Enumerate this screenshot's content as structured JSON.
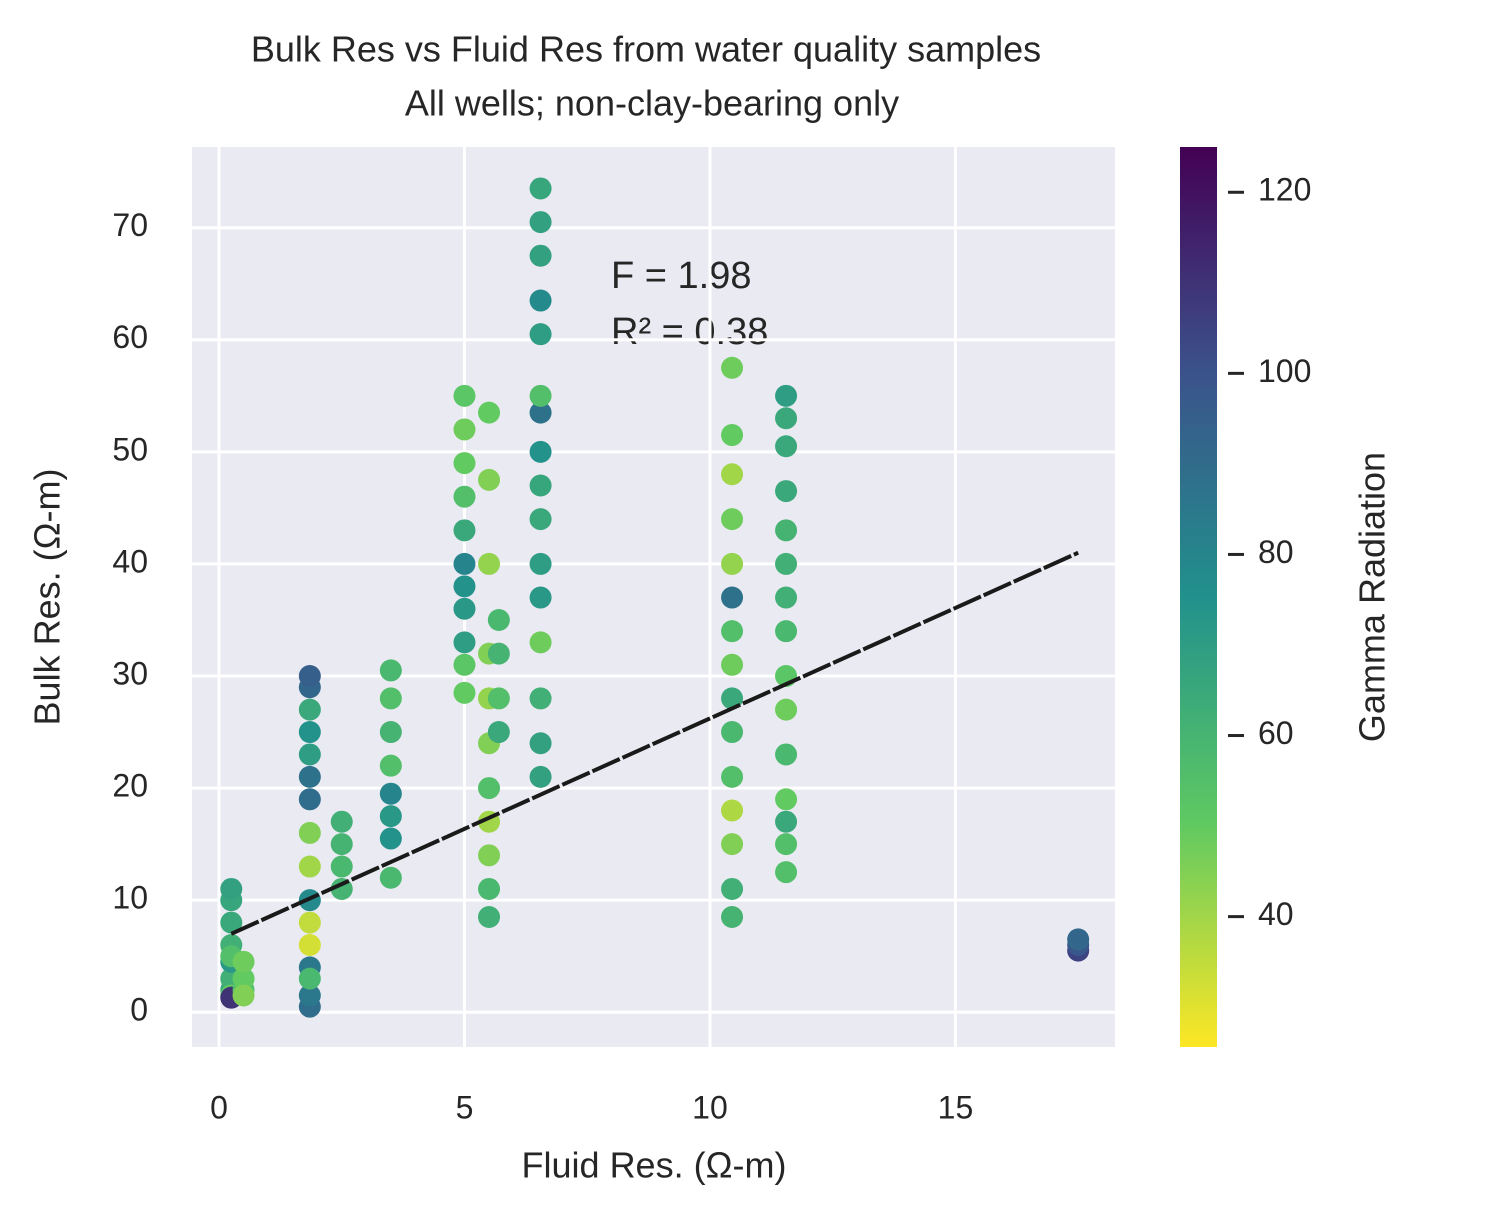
{
  "chart_data": {
    "type": "scatter",
    "title": "Bulk Res vs Fluid Res from water quality samples",
    "subtitle": "All wells; non-clay-bearing only",
    "x_label": "Fluid Res.  (Ω-m)",
    "y_label": "Bulk Res. (Ω-m)",
    "colorbar_label": "Gamma Radiation",
    "annotations": [
      "F = 1.98",
      "R² = 0.38"
    ],
    "colormap": "viridis_r",
    "grid": true,
    "xlim": [
      -0.55,
      18.25
    ],
    "xticks": [
      0,
      5,
      10,
      15
    ],
    "ylim": [
      -3.1,
      77.2
    ],
    "yticks": [
      0,
      10,
      20,
      30,
      40,
      50,
      60,
      70
    ],
    "clim": [
      25.6,
      125
    ],
    "cticks": [
      40,
      60,
      80,
      100,
      120
    ],
    "x": [
      0.25,
      0.25,
      0.25,
      0.25,
      0.25,
      0.25,
      0.25,
      0.25,
      0.25,
      0.25,
      0.5,
      0.5,
      0.5,
      0.5,
      1.85,
      1.85,
      1.85,
      1.85,
      1.85,
      1.85,
      1.85,
      1.85,
      1.85,
      1.85,
      1.85,
      1.85,
      1.85,
      1.85,
      1.85,
      1.85,
      2.5,
      2.5,
      2.5,
      2.5,
      3.5,
      3.5,
      3.5,
      3.5,
      3.5,
      3.5,
      3.5,
      3.5,
      5,
      5,
      5,
      5,
      5,
      5,
      5,
      5,
      5,
      5,
      5,
      5.5,
      5.5,
      5.5,
      5.5,
      5.5,
      5.5,
      5.5,
      5.5,
      5.5,
      5.5,
      5.5,
      5.7,
      5.7,
      5.7,
      5.7,
      6.55,
      6.55,
      6.55,
      6.55,
      6.55,
      6.55,
      6.55,
      6.55,
      6.55,
      6.55,
      6.55,
      6.55,
      6.55,
      6.55,
      6.55,
      6.55,
      10.45,
      10.45,
      10.45,
      10.45,
      10.45,
      10.45,
      10.45,
      10.45,
      10.45,
      10.45,
      10.45,
      10.45,
      10.45,
      10.45,
      10.45,
      11.55,
      11.55,
      11.55,
      11.55,
      11.55,
      11.55,
      11.55,
      11.55,
      11.55,
      11.55,
      11.55,
      11.55,
      11.55,
      11.55,
      11.55,
      17.5,
      17.5,
      17.5
    ],
    "values": [
      2,
      3,
      4.5,
      6,
      8,
      10,
      11,
      1.5,
      5,
      1.3,
      2,
      3,
      4.5,
      1.5,
      0.5,
      1.5,
      4,
      6,
      8,
      10,
      13,
      16,
      19,
      21,
      23,
      25,
      27,
      29,
      30,
      3,
      11,
      13,
      15,
      17,
      12,
      15.5,
      17.5,
      19.5,
      22,
      25,
      28,
      30.5,
      28.5,
      31,
      33,
      36,
      38,
      40,
      43,
      46,
      49,
      52,
      55,
      8.5,
      11,
      14,
      17,
      20,
      24,
      28,
      32,
      40,
      47.5,
      53.5,
      25,
      28,
      32,
      35,
      21,
      24,
      28,
      33,
      37,
      40,
      44,
      47,
      50,
      53.5,
      55,
      60.5,
      63.5,
      67.5,
      70.5,
      73.5,
      8.5,
      11,
      15,
      18,
      21,
      25,
      28,
      31,
      34,
      37,
      40,
      44,
      48,
      51.5,
      57.5,
      12.5,
      15,
      17,
      19,
      23,
      27,
      30,
      34,
      37,
      40,
      43,
      46.5,
      50.5,
      53,
      55,
      5.5,
      6,
      6.5
    ],
    "color_values": [
      65,
      62,
      72,
      62,
      65,
      66,
      68,
      50,
      55,
      110,
      55,
      50,
      48,
      45,
      90,
      85,
      85,
      32,
      35,
      78,
      40,
      45,
      90,
      88,
      70,
      75,
      65,
      92,
      95,
      58,
      60,
      58,
      60,
      62,
      58,
      75,
      72,
      80,
      55,
      60,
      55,
      58,
      50,
      52,
      70,
      72,
      75,
      80,
      65,
      55,
      50,
      48,
      52,
      62,
      58,
      45,
      40,
      55,
      45,
      42,
      45,
      42,
      45,
      50,
      65,
      55,
      60,
      58,
      68,
      68,
      62,
      48,
      72,
      70,
      65,
      66,
      75,
      88,
      55,
      70,
      78,
      68,
      68,
      66,
      60,
      62,
      45,
      38,
      55,
      58,
      65,
      48,
      55,
      88,
      42,
      48,
      40,
      50,
      48,
      55,
      55,
      65,
      50,
      58,
      48,
      52,
      58,
      62,
      62,
      60,
      65,
      65,
      65,
      70,
      105,
      98,
      92
    ],
    "fit": {
      "x": [
        0.25,
        17.5
      ],
      "y": [
        7,
        41
      ]
    }
  }
}
